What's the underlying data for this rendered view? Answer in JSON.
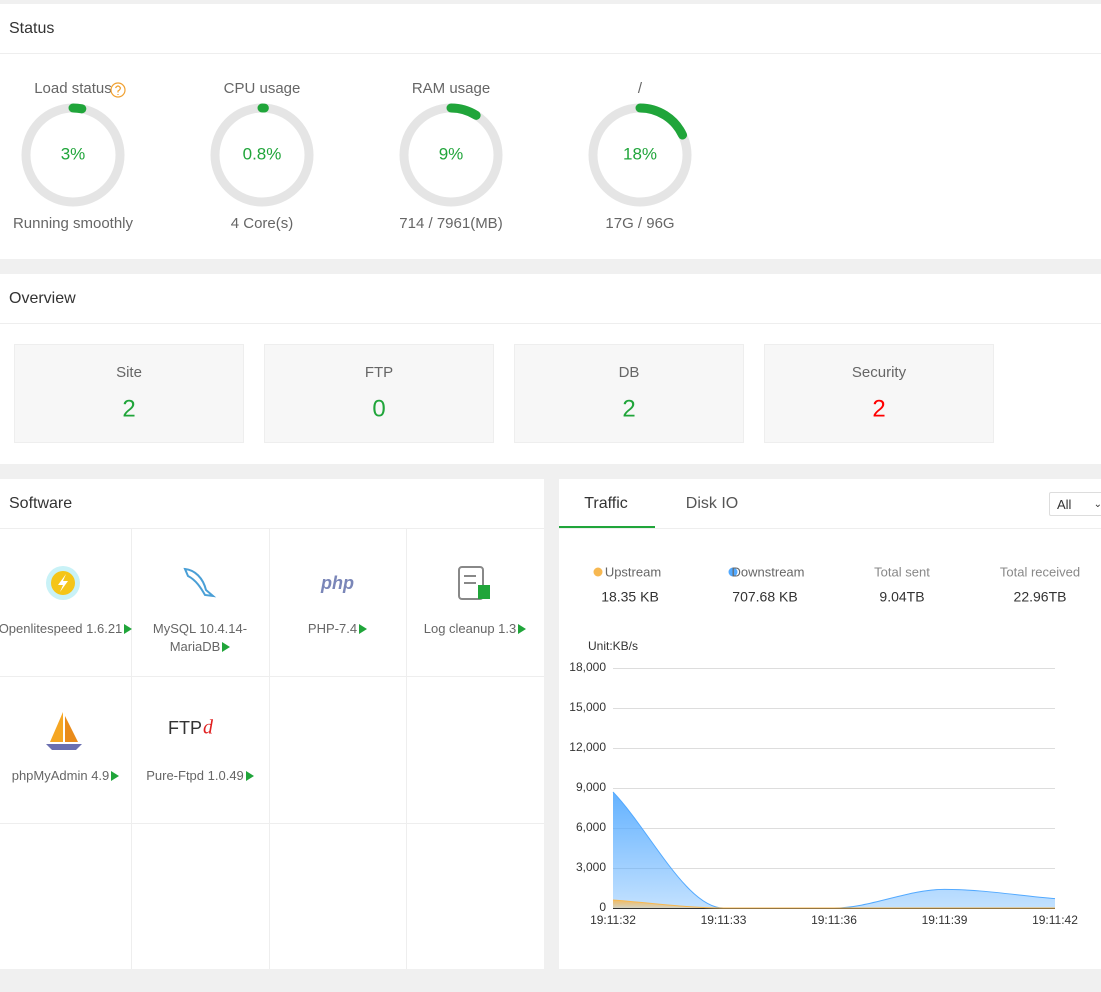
{
  "status": {
    "title": "Status",
    "gauges": [
      {
        "label": "Load status",
        "value": 3,
        "value_label": "3%",
        "detail": "Running smoothly"
      },
      {
        "label": "CPU usage",
        "value": 0.8,
        "value_label": "0.8%",
        "detail": "4 Core(s)"
      },
      {
        "label": "RAM usage",
        "value": 9,
        "value_label": "9%",
        "detail": "714 / 7961(MB)"
      },
      {
        "label": "/",
        "value": 18,
        "value_label": "18%",
        "detail": "17G / 96G"
      }
    ]
  },
  "overview": {
    "title": "Overview",
    "cards": [
      {
        "label": "Site",
        "value": 2,
        "color": "#20a53a"
      },
      {
        "label": "FTP",
        "value": 0,
        "color": "#20a53a"
      },
      {
        "label": "DB",
        "value": 2,
        "color": "#20a53a"
      },
      {
        "label": "Security",
        "value": 2,
        "color": "#ff0000"
      }
    ]
  },
  "software": {
    "title": "Software",
    "items": [
      {
        "name": "Openlitespeed 1.6.21"
      },
      {
        "name": "MySQL 10.4.14-MariaDB"
      },
      {
        "name": "PHP-7.4",
        "icon_text": [
          "php"
        ]
      },
      {
        "name": "Log cleanup 1.3"
      },
      {
        "name": "phpMyAdmin 4.9"
      },
      {
        "name": "Pure-Ftpd 1.0.49",
        "icon_text": [
          "FTP",
          "d"
        ]
      }
    ]
  },
  "traffic": {
    "tabs": [
      "Traffic",
      "Disk IO"
    ],
    "filter": "All",
    "unit": "Unit:KB/s",
    "totals": [
      {
        "label": "Total sent",
        "value": "9.04TB"
      },
      {
        "label": "Total received",
        "value": "22.96TB"
      }
    ]
  },
  "chart_data": {
    "type": "area",
    "categories": [
      "19:11:32",
      "19:11:33",
      "19:11:36",
      "19:11:39",
      "19:11:42"
    ],
    "series": [
      {
        "name": "Upstream",
        "color": "#f7b851",
        "current": "18.35 KB",
        "values": [
          600,
          0,
          0,
          0,
          0
        ]
      },
      {
        "name": "Downstream",
        "color": "#52a9ff",
        "current": "707.68 KB",
        "values": [
          8700,
          0,
          0,
          1400,
          700
        ]
      }
    ],
    "ylim": [
      0,
      18000
    ],
    "yticks": [
      0,
      {
        "value": 3000,
        "label": "3,000"
      },
      {
        "value": 6000,
        "label": "6,000"
      },
      {
        "value": 9000,
        "label": "9,000"
      },
      {
        "value": 12000,
        "label": "12,000"
      },
      {
        "value": 15000,
        "label": "15,000"
      },
      {
        "value": 18000,
        "label": "18,000"
      }
    ],
    "grid": true
  }
}
